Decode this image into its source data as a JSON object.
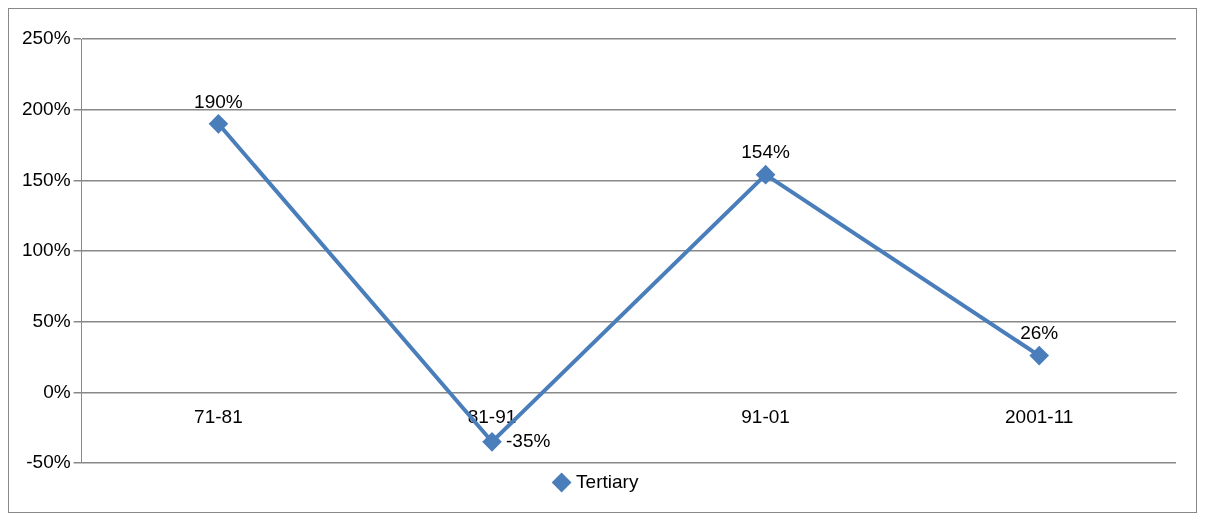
{
  "chart_data": {
    "type": "line",
    "categories": [
      "71-81",
      "81-91",
      "91-01",
      "2001-11"
    ],
    "series": [
      {
        "name": "Tertiary",
        "color": "#4a7ebb",
        "values": [
          190,
          -35,
          154,
          26
        ],
        "value_labels": [
          "190%",
          "-35%",
          "154%",
          "26%"
        ]
      }
    ],
    "ylim": [
      -50,
      250
    ],
    "yticks": [
      {
        "value": -50,
        "label": "-50%"
      },
      {
        "value": 0,
        "label": "0%"
      },
      {
        "value": 50,
        "label": "50%"
      },
      {
        "value": 100,
        "label": "100%"
      },
      {
        "value": 150,
        "label": "150%"
      },
      {
        "value": 200,
        "label": "200%"
      },
      {
        "value": 250,
        "label": "250%"
      }
    ],
    "grid": "y",
    "legend": "bottom",
    "marker": "diamond",
    "line_style": "solid"
  }
}
